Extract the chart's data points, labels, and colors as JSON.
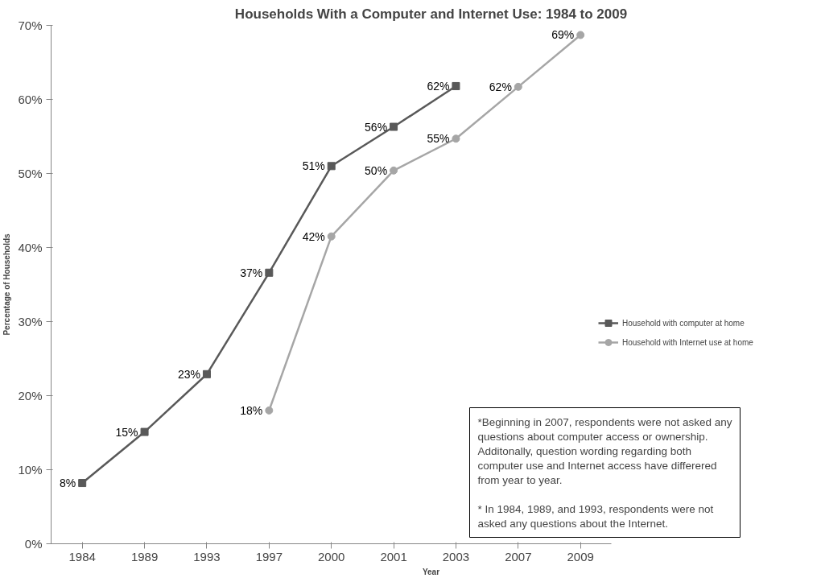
{
  "chart_data": {
    "type": "line",
    "title": "Households With a Computer and Internet Use: 1984 to 2009",
    "xlabel": "Year",
    "ylabel": "Percentage of Households",
    "categories": [
      "1984",
      "1989",
      "1993",
      "1997",
      "2000",
      "2001",
      "2003",
      "2007",
      "2009"
    ],
    "series": [
      {
        "name": "Household with computer at home",
        "color": "#595959",
        "marker": "square",
        "values": [
          8.2,
          15.1,
          22.9,
          36.6,
          51,
          56.3,
          61.8,
          null,
          null
        ],
        "value_labels": [
          "8%",
          "15%",
          "23%",
          "37%",
          "51%",
          "56%",
          "62%",
          null,
          null
        ]
      },
      {
        "name": "Household with Internet use at home",
        "color": "#a6a6a6",
        "marker": "circle",
        "values": [
          null,
          null,
          null,
          18,
          41.5,
          50.4,
          54.7,
          61.7,
          68.7
        ],
        "value_labels": [
          null,
          null,
          null,
          "18%",
          "42%",
          "50%",
          "55%",
          "62%",
          "69%"
        ]
      }
    ],
    "ylim": [
      0,
      70
    ],
    "yticks": [
      {
        "value": 0,
        "label": "0%"
      },
      {
        "value": 10,
        "label": "10%"
      },
      {
        "value": 20,
        "label": "20%"
      },
      {
        "value": 30,
        "label": "30%"
      },
      {
        "value": 40,
        "label": "40%"
      },
      {
        "value": 50,
        "label": "50%"
      },
      {
        "value": 60,
        "label": "60%"
      },
      {
        "value": 70,
        "label": "70%"
      }
    ],
    "grid": false,
    "legend": "right",
    "line_style": "solid",
    "annotations": [
      "*Beginning in 2007, respondents were not asked any questions about computer access or ownership. Additonally, question wording regarding both computer use and Internet access have differered from year to year.",
      "* In 1984, 1989, and 1993, respondents were not asked any questions about the Internet."
    ]
  }
}
